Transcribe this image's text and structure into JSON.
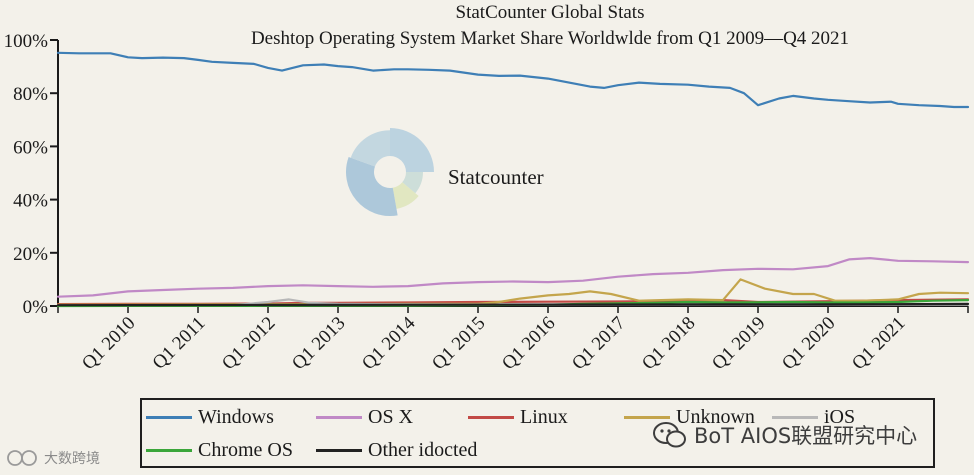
{
  "chart_data": {
    "type": "line",
    "title": "StatCounter Global Stats",
    "subtitle": "Deshtop Operating System Market Share Worldwlde from Q1 2009—Q4 2021",
    "xlabel": "",
    "ylabel": "",
    "ylim": [
      0,
      100
    ],
    "yticks": [
      "0%",
      "20%",
      "40%",
      "60%",
      "80%",
      "100%"
    ],
    "ytick_values": [
      0,
      20,
      40,
      60,
      80,
      100
    ],
    "xlim": [
      2009.0,
      2022.0
    ],
    "xticks": [
      "Q1 2010",
      "Q1 2011",
      "Q1 2012",
      "Q1 2013",
      "Q1 2014",
      "Q1 2015",
      "Q1 2016",
      "Q1 2017",
      "Q1 2018",
      "Q1 2019",
      "Q1 2020",
      "Q1 2021"
    ],
    "xtick_values": [
      2010,
      2011,
      2012,
      2013,
      2014,
      2015,
      2016,
      2017,
      2018,
      2019,
      2020,
      2021
    ],
    "legend_position": "bottom",
    "series": [
      {
        "name": "Windows",
        "color": "#3e7fb6",
        "x": [
          2009.0,
          2009.3,
          2009.6,
          2009.75,
          2010.0,
          2010.2,
          2010.5,
          2010.8,
          2011.0,
          2011.2,
          2011.5,
          2011.8,
          2012.0,
          2012.2,
          2012.5,
          2012.8,
          2013.0,
          2013.2,
          2013.5,
          2013.8,
          2014.0,
          2014.3,
          2014.6,
          2015.0,
          2015.3,
          2015.6,
          2016.0,
          2016.3,
          2016.6,
          2016.8,
          2017.0,
          2017.3,
          2017.6,
          2018.0,
          2018.3,
          2018.6,
          2018.8,
          2019.0,
          2019.3,
          2019.5,
          2019.8,
          2020.0,
          2020.3,
          2020.6,
          2020.9,
          2021.0,
          2021.3,
          2021.6,
          2021.8,
          2022.0
        ],
        "values": [
          95.2,
          95.0,
          95.0,
          95.0,
          93.5,
          93.2,
          93.4,
          93.2,
          92.5,
          91.8,
          91.4,
          91.0,
          89.5,
          88.5,
          90.5,
          90.8,
          90.2,
          89.8,
          88.5,
          89.0,
          89.0,
          88.8,
          88.5,
          87.0,
          86.5,
          86.6,
          85.5,
          84.0,
          82.5,
          82.0,
          83.0,
          84.0,
          83.5,
          83.2,
          82.5,
          82.0,
          80.0,
          75.5,
          78.0,
          79.0,
          78.0,
          77.5,
          77.0,
          76.5,
          76.8,
          76.0,
          75.5,
          75.2,
          74.8,
          74.8
        ]
      },
      {
        "name": "OS X",
        "color": "#c089c6",
        "x": [
          2009.0,
          2009.5,
          2010.0,
          2010.5,
          2011.0,
          2011.5,
          2012.0,
          2012.5,
          2013.0,
          2013.5,
          2014.0,
          2014.5,
          2015.0,
          2015.5,
          2016.0,
          2016.5,
          2017.0,
          2017.5,
          2018.0,
          2018.5,
          2019.0,
          2019.5,
          2020.0,
          2020.3,
          2020.6,
          2021.0,
          2021.5,
          2022.0
        ],
        "values": [
          3.5,
          4.0,
          5.5,
          6.0,
          6.5,
          6.8,
          7.5,
          7.8,
          7.5,
          7.2,
          7.5,
          8.5,
          9.0,
          9.2,
          9.0,
          9.5,
          11.0,
          12.0,
          12.5,
          13.5,
          14.0,
          13.8,
          15.0,
          17.5,
          18.0,
          17.0,
          16.8,
          16.5
        ]
      },
      {
        "name": "Linux",
        "color": "#c24a46",
        "x": [
          2009.0,
          2010.0,
          2011.0,
          2012.0,
          2012.5,
          2013.0,
          2014.0,
          2015.0,
          2016.0,
          2017.0,
          2017.5,
          2018.0,
          2018.5,
          2019.0,
          2020.0,
          2021.0,
          2022.0
        ],
        "values": [
          0.7,
          0.8,
          0.8,
          0.9,
          1.2,
          1.2,
          1.3,
          1.5,
          1.6,
          1.7,
          1.8,
          2.0,
          2.2,
          1.5,
          1.8,
          2.2,
          2.5
        ]
      },
      {
        "name": "Unknown",
        "color": "#c4a54c",
        "x": [
          2009.0,
          2014.0,
          2015.0,
          2015.3,
          2015.6,
          2016.0,
          2016.3,
          2016.6,
          2016.9,
          2017.3,
          2018.0,
          2018.5,
          2018.75,
          2019.1,
          2019.5,
          2019.8,
          2020.1,
          2020.5,
          2021.0,
          2021.3,
          2021.6,
          2022.0
        ],
        "values": [
          0.5,
          0.8,
          0.8,
          1.5,
          2.8,
          4.0,
          4.5,
          5.5,
          4.5,
          2.0,
          2.5,
          2.2,
          10.0,
          6.5,
          4.5,
          4.5,
          2.0,
          2.0,
          2.5,
          4.5,
          5.0,
          4.8
        ]
      },
      {
        "name": "iOS",
        "color": "#b8b8b8",
        "x": [
          2009.0,
          2011.5,
          2012.0,
          2012.3,
          2012.6,
          2013.0,
          2014.0,
          2016.0,
          2018.0,
          2020.0,
          2022.0
        ],
        "values": [
          0.2,
          0.3,
          1.5,
          2.5,
          1.2,
          0.8,
          0.6,
          0.5,
          0.5,
          0.5,
          0.5
        ]
      },
      {
        "name": "Chrome OS",
        "color": "#3aa63a",
        "x": [
          2009.0,
          2012.0,
          2014.0,
          2016.0,
          2016.5,
          2017.0,
          2017.5,
          2018.0,
          2018.5,
          2019.0,
          2019.5,
          2020.0,
          2020.5,
          2021.0,
          2021.5,
          2022.0
        ],
        "values": [
          0.0,
          0.1,
          0.2,
          0.5,
          0.8,
          1.0,
          1.2,
          1.5,
          1.3,
          1.4,
          1.5,
          1.3,
          1.3,
          1.5,
          2.0,
          2.2
        ]
      },
      {
        "name": "Other idocted",
        "color": "#222222",
        "x": [
          2009.0,
          2012.0,
          2015.0,
          2018.0,
          2020.0,
          2022.0
        ],
        "values": [
          0.3,
          0.4,
          0.5,
          0.6,
          0.6,
          0.8
        ]
      }
    ]
  },
  "brand": {
    "name": "Statcounter",
    "logo_colors": [
      "#b6cfdf",
      "#c9dcd7",
      "#dfe6bd",
      "#a5c3d8",
      "#bed4df"
    ]
  },
  "watermarks": {
    "left_text": "大数跨境",
    "right_text": "BoT AIOS联盟研究中心"
  }
}
